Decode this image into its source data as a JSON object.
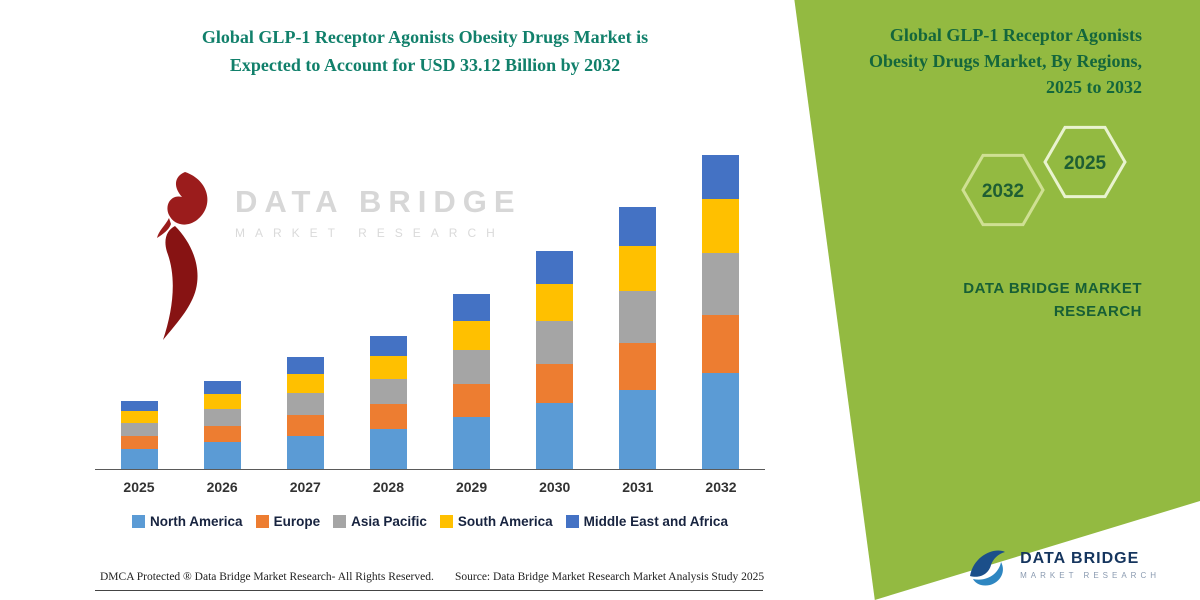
{
  "left": {
    "title_line1": "Global GLP-1 Receptor Agonists Obesity Drugs Market is",
    "title_line2": "Expected to Account for USD 33.12 Billion by 2032"
  },
  "watermark": {
    "line1": "DATA BRIDGE",
    "line2": "MARKET RESEARCH"
  },
  "chart_data": {
    "type": "bar",
    "stacked": true,
    "title": "Global GLP-1 Receptor Agonists Obesity Drugs Market is Expected to Account for USD 33.12 Billion by 2032",
    "categories": [
      "2025",
      "2026",
      "2027",
      "2028",
      "2029",
      "2030",
      "2031",
      "2032"
    ],
    "series": [
      {
        "name": "North America",
        "color": "#5B9BD5",
        "values": [
          2.2,
          2.9,
          3.6,
          4.3,
          5.6,
          7.0,
          8.4,
          10.2
        ]
      },
      {
        "name": "Europe",
        "color": "#ED7D31",
        "values": [
          1.4,
          1.7,
          2.2,
          2.6,
          3.4,
          4.2,
          5.0,
          6.1
        ]
      },
      {
        "name": "Asia Pacific",
        "color": "#A5A5A5",
        "values": [
          1.4,
          1.8,
          2.3,
          2.7,
          3.6,
          4.5,
          5.4,
          6.5
        ]
      },
      {
        "name": "South America",
        "color": "#FFC000",
        "values": [
          1.2,
          1.6,
          2.0,
          2.4,
          3.1,
          3.9,
          4.7,
          5.7
        ]
      },
      {
        "name": "Middle East and Africa",
        "color": "#4472C4",
        "values": [
          1.1,
          1.4,
          1.8,
          2.1,
          2.8,
          3.4,
          4.1,
          4.62
        ]
      }
    ],
    "total_2032": 33.12,
    "ylim": [
      0,
      34
    ],
    "grid": false,
    "legend_position": "bottom"
  },
  "right_panel": {
    "title": "Global GLP-1 Receptor Agonists Obesity Drugs Market, By Regions, 2025 to 2032",
    "hexagon_left_year": "2032",
    "hexagon_right_year": "2025",
    "brand": "DATA BRIDGE MARKET RESEARCH",
    "accent_color": "#93ba41"
  },
  "footer": {
    "left": "DMCA Protected ® Data Bridge Market Research- All Rights Reserved.",
    "right": "Source: Data Bridge Market Research Market Analysis Study 2025"
  },
  "logo": {
    "line1": "DATA BRIDGE",
    "line2": "MARKET RESEARCH"
  }
}
